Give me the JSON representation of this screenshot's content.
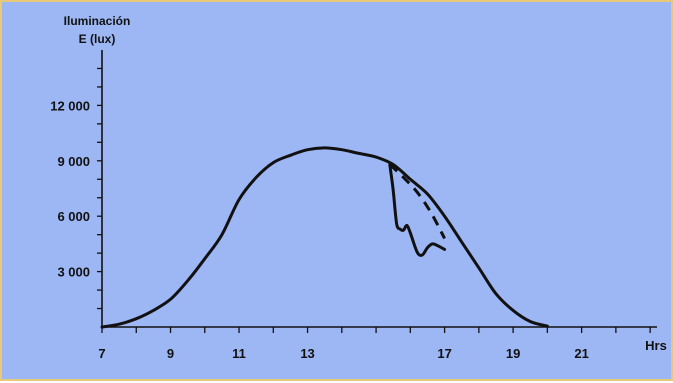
{
  "chart_data": {
    "type": "line",
    "ylabel_lines": [
      "Iluminación",
      "E (lux)"
    ],
    "xlabel": "Hrs",
    "x_ticks": [
      7,
      9,
      11,
      13,
      17,
      19,
      21
    ],
    "x_tick_labels": [
      "7",
      "9",
      "11",
      "13",
      "17",
      "19",
      "21"
    ],
    "y_ticks": [
      3000,
      6000,
      9000,
      12000
    ],
    "y_tick_labels": [
      "3 000",
      "6 000",
      "9 000",
      "12 000"
    ],
    "xlim": [
      7,
      23.2
    ],
    "ylim": [
      0,
      15000
    ],
    "grid": false,
    "series": [
      {
        "style": "solid",
        "x": [
          7,
          7.5,
          8,
          8.5,
          9,
          9.5,
          10,
          10.5,
          11,
          11.5,
          12,
          12.5,
          13,
          13.5,
          14,
          14.5,
          15,
          15.5,
          16,
          16.5,
          17,
          17.5,
          18,
          18.5,
          19,
          19.5,
          20
        ],
        "y": [
          0,
          150,
          450,
          900,
          1500,
          2500,
          3700,
          5000,
          6900,
          8100,
          8900,
          9300,
          9600,
          9700,
          9600,
          9400,
          9200,
          8800,
          8000,
          7200,
          6000,
          4600,
          3200,
          1800,
          900,
          300,
          50
        ]
      },
      {
        "style": "solid",
        "x": [
          15.4,
          15.5,
          15.6,
          15.7,
          15.8,
          15.9,
          16.0,
          16.2,
          16.35,
          16.5,
          16.65,
          16.8,
          17.0
        ],
        "y": [
          8800,
          7400,
          5600,
          5300,
          5250,
          5500,
          5100,
          4050,
          3900,
          4300,
          4500,
          4400,
          4200
        ]
      },
      {
        "style": "dashed",
        "x": [
          15.4,
          15.8,
          16.2,
          16.6,
          17.0
        ],
        "y": [
          8800,
          8100,
          7300,
          6200,
          4800
        ]
      }
    ]
  }
}
